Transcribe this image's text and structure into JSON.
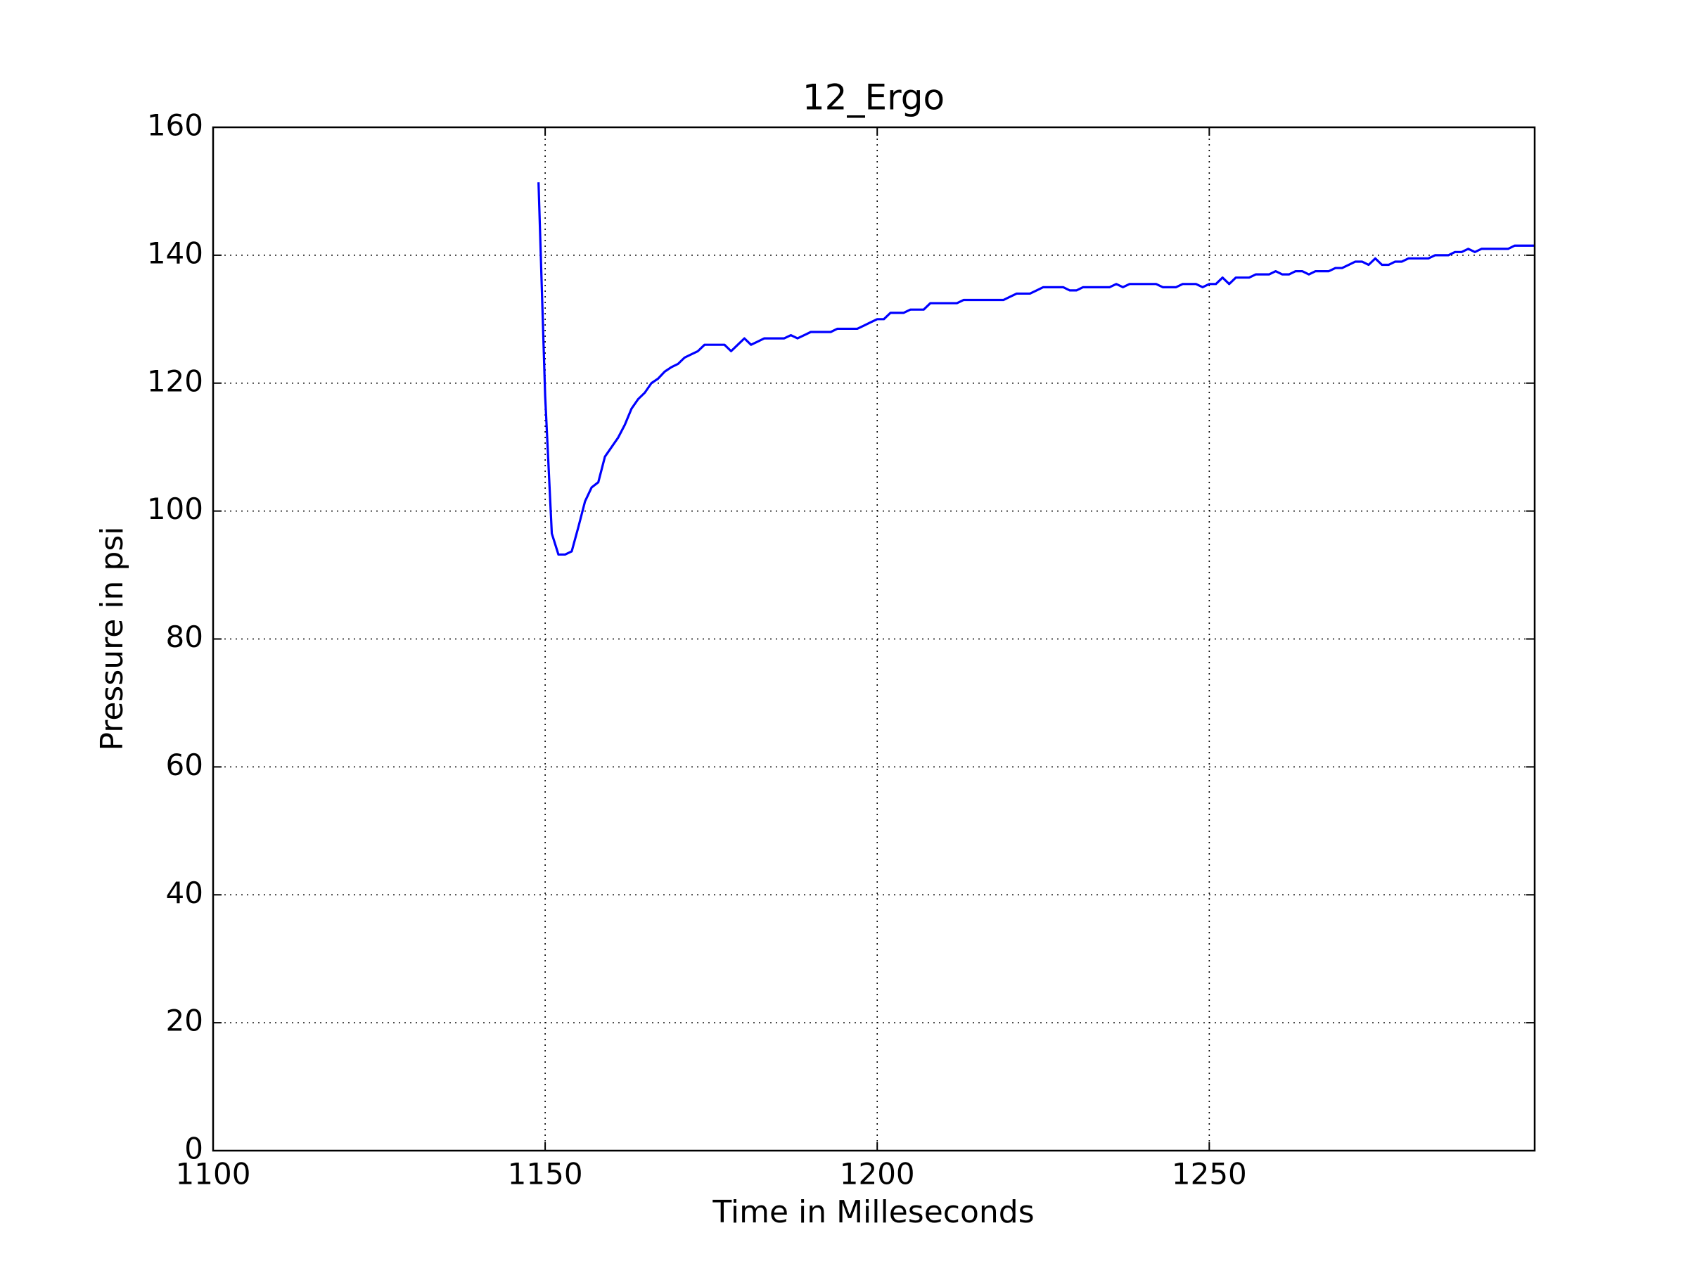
{
  "chart_data": {
    "type": "line",
    "title": "12_Ergo",
    "x_label": "Time in Milleseconds",
    "y_label": "Pressure in psi",
    "color": "#0000ff",
    "grid": true,
    "xlim": [
      1100,
      1299
    ],
    "ylim": [
      0,
      160
    ],
    "xticks": [
      1100,
      1150,
      1200,
      1250
    ],
    "yticks": [
      0,
      20,
      40,
      60,
      80,
      100,
      120,
      140,
      160
    ],
    "x": [
      1149,
      1150,
      1151,
      1152,
      1153,
      1154,
      1155,
      1156,
      1157,
      1158,
      1159,
      1160,
      1161,
      1162,
      1163,
      1164,
      1165,
      1166,
      1167,
      1168,
      1169,
      1170,
      1171,
      1172,
      1173,
      1174,
      1175,
      1176,
      1177,
      1178,
      1179,
      1180,
      1181,
      1182,
      1183,
      1184,
      1185,
      1186,
      1187,
      1188,
      1189,
      1190,
      1191,
      1192,
      1193,
      1194,
      1195,
      1196,
      1197,
      1198,
      1199,
      1200,
      1201,
      1202,
      1203,
      1204,
      1205,
      1206,
      1207,
      1208,
      1209,
      1210,
      1211,
      1212,
      1213,
      1214,
      1215,
      1216,
      1217,
      1218,
      1219,
      1220,
      1221,
      1222,
      1223,
      1224,
      1225,
      1226,
      1227,
      1228,
      1229,
      1230,
      1231,
      1232,
      1233,
      1234,
      1235,
      1236,
      1237,
      1238,
      1239,
      1240,
      1241,
      1242,
      1243,
      1244,
      1245,
      1246,
      1247,
      1248,
      1249,
      1250,
      1251,
      1252,
      1253,
      1254,
      1255,
      1256,
      1257,
      1258,
      1259,
      1260,
      1261,
      1262,
      1263,
      1264,
      1265,
      1266,
      1267,
      1268,
      1269,
      1270,
      1271,
      1272,
      1273,
      1274,
      1275,
      1276,
      1277,
      1278,
      1279,
      1280,
      1281,
      1282,
      1283,
      1284,
      1285,
      1286,
      1287,
      1288,
      1289,
      1290,
      1291,
      1292,
      1293,
      1294,
      1295,
      1296,
      1297,
      1298,
      1299
    ],
    "values": [
      151.4,
      118,
      96.5,
      93.2,
      93.2,
      93.7,
      97.5,
      101.5,
      103.7,
      104.5,
      108.5,
      110,
      111.5,
      113.5,
      116,
      117.5,
      118.5,
      120,
      120.7,
      121.8,
      122.5,
      123,
      124,
      124.5,
      125,
      126,
      126,
      126,
      126,
      125,
      126,
      127,
      126,
      126.5,
      127,
      127,
      127,
      127,
      127.5,
      127,
      127.5,
      128,
      128,
      128,
      128,
      128.5,
      128.5,
      128.5,
      128.5,
      129,
      129.5,
      130,
      130,
      131,
      131,
      131,
      131.5,
      131.5,
      131.5,
      132.5,
      132.5,
      132.5,
      132.5,
      132.5,
      133,
      133,
      133,
      133,
      133,
      133,
      133,
      133.5,
      134,
      134,
      134,
      134.5,
      135,
      135,
      135,
      135,
      134.5,
      134.5,
      135,
      135,
      135,
      135,
      135,
      135.5,
      135,
      135.5,
      135.5,
      135.5,
      135.5,
      135.5,
      135,
      135,
      135,
      135.5,
      135.5,
      135.5,
      135,
      135.5,
      135.5,
      136.5,
      135.5,
      136.5,
      136.5,
      136.5,
      137,
      137,
      137,
      137.5,
      137,
      137,
      137.5,
      137.5,
      137,
      137.5,
      137.5,
      137.5,
      138,
      138,
      138.5,
      139,
      139,
      138.5,
      139.5,
      138.5,
      138.5,
      139,
      139,
      139.5,
      139.5,
      139.5,
      139.5,
      140,
      140,
      140,
      140.5,
      140.5,
      141,
      140.5,
      141,
      141,
      141,
      141,
      141,
      141.5,
      141.5,
      141.5,
      141.5
    ]
  }
}
